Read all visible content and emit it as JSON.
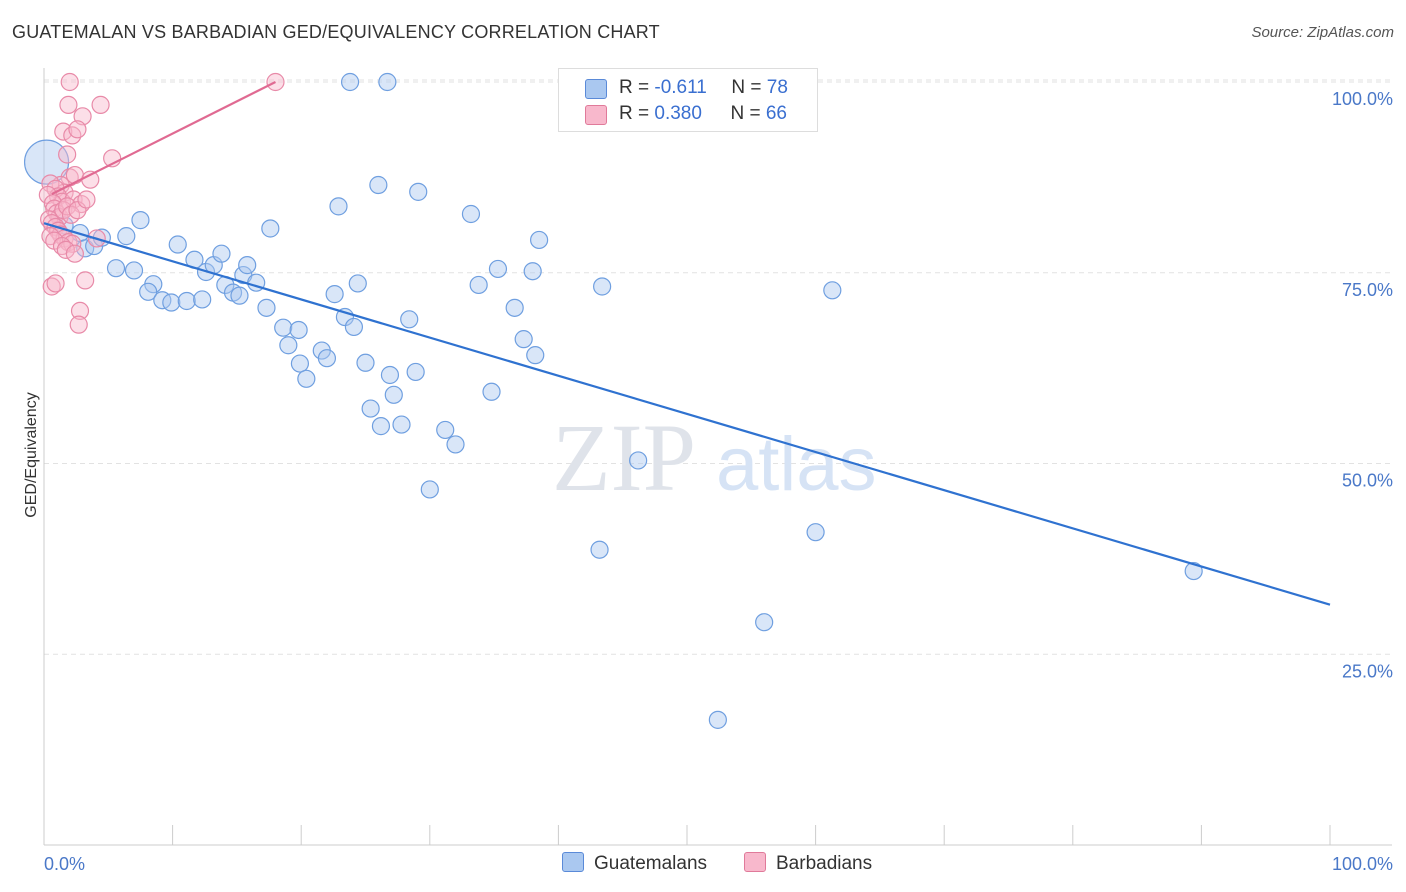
{
  "title": "GUATEMALAN VS BARBADIAN GED/EQUIVALENCY CORRELATION CHART",
  "source": "Source: ZipAtlas.com",
  "watermark": {
    "zip": "ZIP",
    "atlas": "atlas"
  },
  "legend": {
    "rows": [
      {
        "r_label": "R = ",
        "r_value": "-0.611",
        "n_label": "N = ",
        "n_value": "78",
        "color": "#aac8f0",
        "border": "#5a8ad8"
      },
      {
        "r_label": "R = ",
        "r_value": "0.380",
        "n_label": "N = ",
        "n_value": "66",
        "color": "#f8b8cc",
        "border": "#e07a9a"
      }
    ]
  },
  "bottom_legend": [
    {
      "label": "Guatemalans",
      "color": "#aac8f0",
      "border": "#5a8ad8"
    },
    {
      "label": "Barbadians",
      "color": "#f8b8cc",
      "border": "#e07a9a"
    }
  ],
  "chart_data": {
    "type": "scatter",
    "title": "GUATEMALAN VS BARBADIAN GED/EQUIVALENCY CORRELATION CHART",
    "xlabel": "",
    "ylabel": "GED/Equivalency",
    "xlim": [
      0,
      100
    ],
    "ylim": [
      0,
      100
    ],
    "x_tick_labels": [
      "0.0%",
      "100.0%"
    ],
    "y_tick_labels": [
      {
        "value": 100,
        "label": "100.0%"
      },
      {
        "value": 75,
        "label": "75.0%"
      },
      {
        "value": 50,
        "label": "50.0%"
      },
      {
        "value": 25,
        "label": "25.0%"
      }
    ],
    "grid": true,
    "legend_position": "top-center",
    "series": [
      {
        "name": "Guatemalans",
        "color": "#6f9fe0",
        "fill": "rgba(170,200,240,0.45)",
        "trend": {
          "x": [
            0,
            100
          ],
          "y": [
            81.5,
            31.5
          ],
          "color": "#2f72d0"
        },
        "points": [
          [
            0.2,
            89.5
          ],
          [
            1.6,
            81.2
          ],
          [
            2.8,
            80.2
          ],
          [
            3.2,
            78.2
          ],
          [
            3.9,
            78.5
          ],
          [
            4.5,
            79.6
          ],
          [
            6.4,
            79.8
          ],
          [
            7.5,
            81.9
          ],
          [
            5.6,
            75.6
          ],
          [
            7.0,
            75.3
          ],
          [
            8.5,
            73.5
          ],
          [
            8.1,
            72.5
          ],
          [
            9.2,
            71.4
          ],
          [
            9.9,
            71.1
          ],
          [
            10.4,
            78.7
          ],
          [
            11.1,
            71.3
          ],
          [
            11.7,
            76.7
          ],
          [
            12.6,
            75.1
          ],
          [
            12.3,
            71.5
          ],
          [
            13.2,
            76.0
          ],
          [
            13.8,
            77.5
          ],
          [
            14.1,
            73.4
          ],
          [
            14.7,
            72.4
          ],
          [
            15.2,
            72.0
          ],
          [
            15.5,
            74.7
          ],
          [
            15.8,
            76.0
          ],
          [
            16.5,
            73.7
          ],
          [
            17.3,
            70.4
          ],
          [
            17.6,
            80.8
          ],
          [
            18.6,
            67.8
          ],
          [
            19.0,
            65.5
          ],
          [
            19.8,
            67.5
          ],
          [
            19.9,
            63.1
          ],
          [
            20.4,
            61.1
          ],
          [
            21.6,
            64.8
          ],
          [
            22.0,
            63.8
          ],
          [
            22.6,
            72.2
          ],
          [
            22.9,
            83.7
          ],
          [
            23.4,
            69.2
          ],
          [
            24.1,
            67.9
          ],
          [
            24.4,
            73.6
          ],
          [
            25.0,
            63.2
          ],
          [
            25.4,
            57.2
          ],
          [
            23.8,
            100.0
          ],
          [
            26.7,
            100.0
          ],
          [
            26.0,
            86.5
          ],
          [
            26.2,
            54.9
          ],
          [
            26.9,
            61.6
          ],
          [
            27.8,
            55.1
          ],
          [
            28.4,
            68.9
          ],
          [
            28.9,
            62.0
          ],
          [
            29.1,
            85.6
          ],
          [
            27.2,
            59.0
          ],
          [
            30.0,
            46.6
          ],
          [
            31.2,
            54.4
          ],
          [
            32.0,
            52.5
          ],
          [
            33.2,
            82.7
          ],
          [
            33.8,
            73.4
          ],
          [
            34.8,
            59.4
          ],
          [
            35.3,
            75.5
          ],
          [
            36.6,
            70.4
          ],
          [
            37.3,
            66.3
          ],
          [
            38.0,
            75.2
          ],
          [
            38.2,
            64.2
          ],
          [
            38.5,
            79.3
          ],
          [
            43.2,
            38.7
          ],
          [
            43.4,
            73.2
          ],
          [
            46.2,
            50.4
          ],
          [
            52.4,
            16.4
          ],
          [
            56.0,
            29.2
          ],
          [
            60.0,
            41.0
          ],
          [
            61.3,
            72.7
          ],
          [
            89.4,
            35.9
          ]
        ]
      },
      {
        "name": "Barbadians",
        "color": "#e88aa8",
        "fill": "rgba(248,184,204,0.45)",
        "trend": {
          "x": [
            0.6,
            18.0
          ],
          "y": [
            85.3,
            100.0
          ],
          "color": "#e06a92"
        },
        "points": [
          [
            2.0,
            100.0
          ],
          [
            18.0,
            100.0
          ],
          [
            1.9,
            97.0
          ],
          [
            4.4,
            97.0
          ],
          [
            3.0,
            95.5
          ],
          [
            1.5,
            93.5
          ],
          [
            2.2,
            93.0
          ],
          [
            2.6,
            93.8
          ],
          [
            1.8,
            90.5
          ],
          [
            5.3,
            90.0
          ],
          [
            2.0,
            87.5
          ],
          [
            2.4,
            87.8
          ],
          [
            3.6,
            87.2
          ],
          [
            1.3,
            86.5
          ],
          [
            1.6,
            85.5
          ],
          [
            0.5,
            86.7
          ],
          [
            0.9,
            86.0
          ],
          [
            1.1,
            85.0
          ],
          [
            1.4,
            84.3
          ],
          [
            2.3,
            84.6
          ],
          [
            2.9,
            84.0
          ],
          [
            0.3,
            85.2
          ],
          [
            0.7,
            84.1
          ],
          [
            0.8,
            83.4
          ],
          [
            1.0,
            82.8
          ],
          [
            1.2,
            82.3
          ],
          [
            1.5,
            83.2
          ],
          [
            1.8,
            83.7
          ],
          [
            2.1,
            82.6
          ],
          [
            2.6,
            83.2
          ],
          [
            3.3,
            84.6
          ],
          [
            0.4,
            82.0
          ],
          [
            0.6,
            81.5
          ],
          [
            0.9,
            81.0
          ],
          [
            1.1,
            80.5
          ],
          [
            1.3,
            80.0
          ],
          [
            1.6,
            79.5
          ],
          [
            1.9,
            79.0
          ],
          [
            2.2,
            78.8
          ],
          [
            4.1,
            79.5
          ],
          [
            0.5,
            79.8
          ],
          [
            0.8,
            79.2
          ],
          [
            1.4,
            78.5
          ],
          [
            1.7,
            78.0
          ],
          [
            2.4,
            77.5
          ],
          [
            3.2,
            74.0
          ],
          [
            0.6,
            73.2
          ],
          [
            0.9,
            73.6
          ],
          [
            2.8,
            70.0
          ],
          [
            2.7,
            68.2
          ]
        ]
      }
    ]
  }
}
